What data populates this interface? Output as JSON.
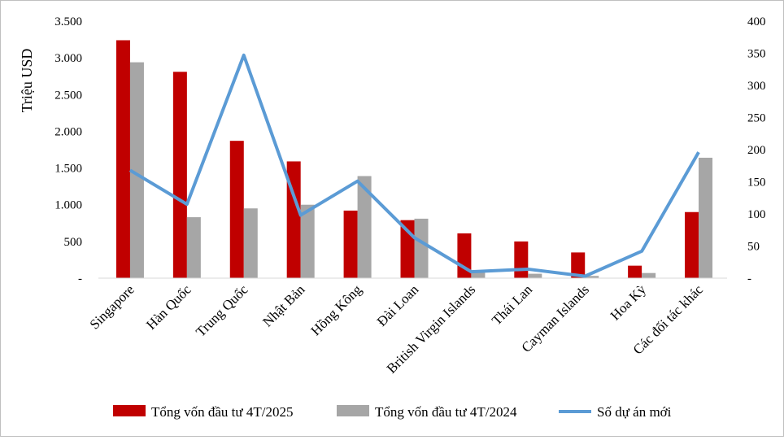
{
  "chart_data": {
    "type": "bar",
    "categories": [
      "Singapore",
      "Hàn Quốc",
      "Trung Quốc",
      "Nhật Bản",
      "Hồng Kông",
      "Đài Loan",
      "British Virgin Islands",
      "Thái Lan",
      "Cayman Islands",
      "Hoa Kỳ",
      "Các đối tác khác"
    ],
    "ylabel": "Triệu USD",
    "ylim": [
      0,
      3500
    ],
    "y_ticks": [
      "-",
      "500",
      "1.000",
      "1.500",
      "2.000",
      "2.500",
      "3.000",
      "3.500"
    ],
    "y2lim": [
      0,
      400
    ],
    "y2_ticks": [
      "-",
      "50",
      "100",
      "150",
      "200",
      "250",
      "300",
      "350",
      "400"
    ],
    "grid": false,
    "legend_position": "bottom",
    "series": [
      {
        "name": "Tổng vốn đầu tư 4T/2025",
        "type": "bar",
        "axis": "left",
        "color": "#c00000",
        "values": [
          3240,
          2810,
          1870,
          1590,
          920,
          790,
          610,
          500,
          350,
          170,
          900
        ]
      },
      {
        "name": "Tổng vốn đầu tư 4T/2024",
        "type": "bar",
        "axis": "left",
        "color": "#a6a6a6",
        "values": [
          2940,
          830,
          950,
          1000,
          1390,
          810,
          80,
          60,
          30,
          70,
          1640
        ]
      },
      {
        "name": "Số dự án mới",
        "type": "line",
        "axis": "right",
        "color": "#5b9bd5",
        "values": [
          168,
          115,
          347,
          98,
          151,
          63,
          10,
          14,
          3,
          42,
          196
        ]
      }
    ]
  }
}
